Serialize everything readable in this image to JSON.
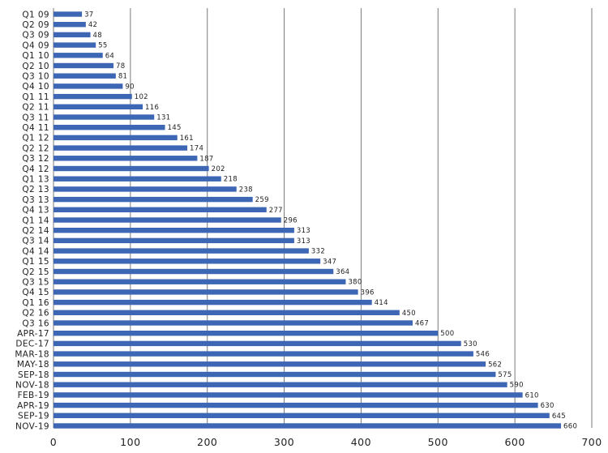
{
  "chart_data": {
    "type": "bar",
    "orientation": "horizontal",
    "title": "",
    "xlabel": "",
    "ylabel": "",
    "xlim": [
      0,
      700
    ],
    "x_ticks": [
      0,
      100,
      200,
      300,
      400,
      500,
      600,
      700
    ],
    "grid": true,
    "bar_color": "#3d66b5",
    "categories": [
      "Q1 09",
      "Q2 09",
      "Q3 09",
      "Q4 09",
      "Q1 10",
      "Q2 10",
      "Q3 10",
      "Q4 10",
      "Q1 11",
      "Q2 11",
      "Q3 11",
      "Q4 11",
      "Q1 12",
      "Q2 12",
      "Q3 12",
      "Q4 12",
      "Q1 13",
      "Q2 13",
      "Q3 13",
      "Q4 13",
      "Q1 14",
      "Q2 14",
      "Q3 14",
      "Q4 14",
      "Q1 15",
      "Q2 15",
      "Q3 15",
      "Q4 15",
      "Q1 16",
      "Q2 16",
      "Q3 16",
      "APR-17",
      "DEC-17",
      "MAR-18",
      "MAY-18",
      "SEP-18",
      "NOV-18",
      "FEB-19",
      "APR-19",
      "SEP-19",
      "NOV-19"
    ],
    "values": [
      37,
      42,
      48,
      55,
      64,
      78,
      81,
      90,
      102,
      116,
      131,
      145,
      161,
      174,
      187,
      202,
      218,
      238,
      259,
      277,
      296,
      313,
      313,
      332,
      347,
      364,
      380,
      396,
      414,
      450,
      467,
      500,
      530,
      546,
      562,
      575,
      590,
      610,
      630,
      645,
      660
    ]
  }
}
